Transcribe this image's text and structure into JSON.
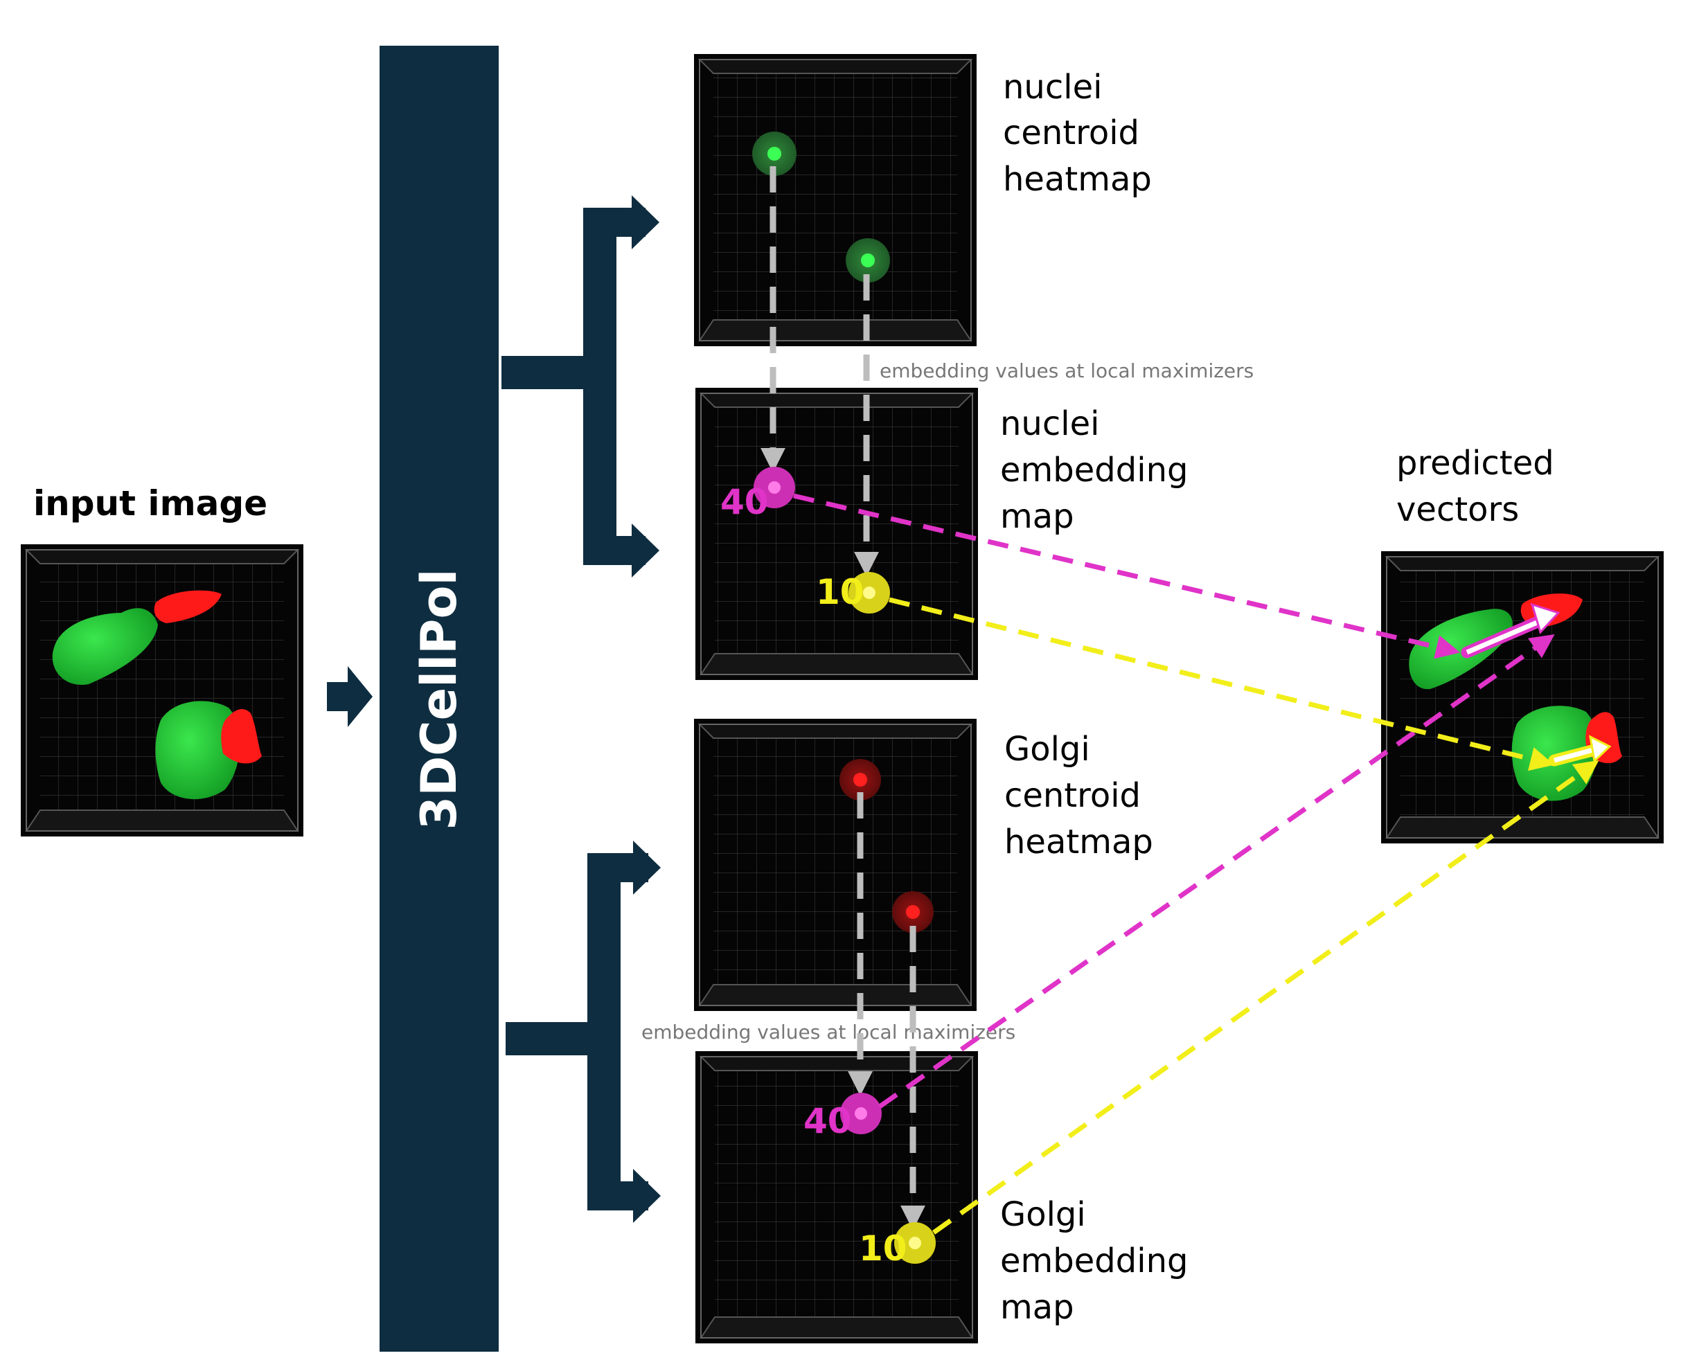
{
  "title": "",
  "labels": {
    "input_image": "input image",
    "model_name": "3DCellPol",
    "nuclei_centroid_heatmap": [
      "nuclei",
      "centroid",
      "heatmap"
    ],
    "nuclei_embedding_map": [
      "nuclei",
      "embedding",
      "map"
    ],
    "golgi_centroid_heatmap": [
      "Golgi",
      "centroid",
      "heatmap"
    ],
    "golgi_embedding_map": [
      "Golgi",
      "embedding",
      "map"
    ],
    "predicted_vectors": [
      "predicted",
      "vectors"
    ],
    "embedding_note_top": "embedding values at local maximizers",
    "embedding_note_bottom": "embedding values at local maximizers"
  },
  "embedding_values": {
    "nuclei_a": "40",
    "nuclei_b": "10",
    "golgi_a": "40",
    "golgi_b": "10"
  },
  "colors": {
    "navy": "#0e2d40",
    "panel_black": "#050505",
    "nucleus_green": "#22d13a",
    "golgi_red": "#ff1a1a",
    "magenta": "#e033c8",
    "yellow": "#f2ee1a",
    "arrow_gray": "#bdbdbd",
    "note_gray": "#777777"
  }
}
